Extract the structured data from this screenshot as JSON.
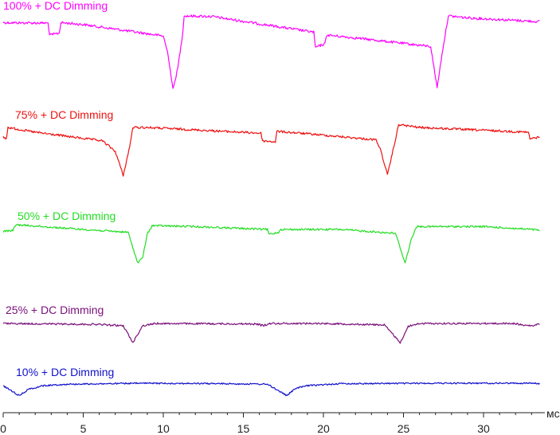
{
  "chart_data": {
    "type": "line",
    "title": "",
    "xlabel": "",
    "ylabel": "",
    "x_unit": "мс",
    "xlim": [
      0,
      35
    ],
    "x_ticks": [
      0,
      5,
      10,
      15,
      20,
      25,
      30
    ],
    "grid": false,
    "period_ms": 16.6,
    "series": [
      {
        "name": "100% + DC Dimming",
        "color": "#ff00ff",
        "keypoints": [
          [
            0,
            0.2
          ],
          [
            2.8,
            0.25
          ],
          [
            2.9,
            1.5
          ],
          [
            3.5,
            1.3
          ],
          [
            3.6,
            0.2
          ],
          [
            5,
            0.4
          ],
          [
            10,
            1.6
          ],
          [
            10.3,
            3.5
          ],
          [
            10.6,
            7.2
          ],
          [
            10.9,
            5
          ],
          [
            11.2,
            1.5
          ],
          [
            11.3,
            -0.5
          ],
          [
            13,
            -0.45
          ],
          [
            19.4,
            1.2
          ],
          [
            19.5,
            2.8
          ],
          [
            20.1,
            2.4
          ],
          [
            20.2,
            1.5
          ],
          [
            22,
            1.8
          ],
          [
            26.7,
            2.7
          ],
          [
            27.1,
            7
          ],
          [
            27.5,
            2.5
          ],
          [
            27.8,
            -0.5
          ],
          [
            29,
            -0.3
          ],
          [
            33.5,
            0.1
          ]
        ]
      },
      {
        "name": "75% + DC Dimming",
        "color": "#ee1111",
        "keypoints": [
          [
            0,
            1
          ],
          [
            0.2,
            1.2
          ],
          [
            0.3,
            0
          ],
          [
            2,
            0.5
          ],
          [
            6.2,
            1.4
          ],
          [
            7,
            2.5
          ],
          [
            7.5,
            5
          ],
          [
            7.9,
            2
          ],
          [
            8.1,
            0
          ],
          [
            9,
            0
          ],
          [
            16.1,
            0.6
          ],
          [
            16.2,
            1.4
          ],
          [
            17,
            1.5
          ],
          [
            17.1,
            0.4
          ],
          [
            20,
            0.8
          ],
          [
            23.3,
            1.3
          ],
          [
            23.6,
            2.5
          ],
          [
            24,
            5
          ],
          [
            24.4,
            2
          ],
          [
            24.7,
            -0.3
          ],
          [
            26,
            0
          ],
          [
            32.8,
            0.5
          ],
          [
            32.9,
            1.2
          ],
          [
            33.5,
            1
          ]
        ]
      },
      {
        "name": "50% + DC Dimming",
        "color": "#22dd22",
        "keypoints": [
          [
            0,
            0.2
          ],
          [
            0.6,
            0.1
          ],
          [
            0.8,
            -0.5
          ],
          [
            5,
            0
          ],
          [
            7.8,
            0.3
          ],
          [
            8.4,
            3.5
          ],
          [
            8.7,
            3
          ],
          [
            9,
            0.5
          ],
          [
            9.3,
            -0.4
          ],
          [
            12,
            -0.3
          ],
          [
            16.5,
            0
          ],
          [
            16.6,
            0.5
          ],
          [
            17.2,
            0.3
          ],
          [
            17.3,
            0
          ],
          [
            21,
            0
          ],
          [
            24.5,
            0.4
          ],
          [
            25.1,
            3.5
          ],
          [
            25.5,
            1
          ],
          [
            25.8,
            -0.3
          ],
          [
            30,
            -0.3
          ],
          [
            33,
            0
          ],
          [
            33.5,
            0.1
          ]
        ]
      },
      {
        "name": "25% + DC Dimming",
        "color": "#7a0f7a",
        "keypoints": [
          [
            0,
            0
          ],
          [
            6,
            0.2
          ],
          [
            7.5,
            0.5
          ],
          [
            8.1,
            4
          ],
          [
            8.7,
            0.5
          ],
          [
            9.5,
            0
          ],
          [
            15.5,
            0.1
          ],
          [
            16,
            0.2
          ],
          [
            16.1,
            0.4
          ],
          [
            16.5,
            0.3
          ],
          [
            16.6,
            0
          ],
          [
            20,
            0
          ],
          [
            23.8,
            0.3
          ],
          [
            24.8,
            4
          ],
          [
            25.3,
            0.6
          ],
          [
            26,
            0
          ],
          [
            32,
            0
          ],
          [
            32.5,
            0.4
          ],
          [
            33.1,
            0.5
          ],
          [
            33.5,
            0.1
          ]
        ]
      },
      {
        "name": "10% + DC Dimming",
        "color": "#1010cc",
        "keypoints": [
          [
            0,
            0.5
          ],
          [
            0.5,
            1.5
          ],
          [
            1,
            2.5
          ],
          [
            1.6,
            1.2
          ],
          [
            2.5,
            0.5
          ],
          [
            4,
            0.2
          ],
          [
            9,
            0
          ],
          [
            14,
            0.1
          ],
          [
            16.5,
            0.2
          ],
          [
            17.2,
            1.5
          ],
          [
            17.7,
            2.5
          ],
          [
            18.3,
            1
          ],
          [
            19,
            0.5
          ],
          [
            21,
            0.1
          ],
          [
            27,
            0
          ],
          [
            33,
            0
          ],
          [
            33.5,
            0.1
          ]
        ]
      }
    ]
  }
}
